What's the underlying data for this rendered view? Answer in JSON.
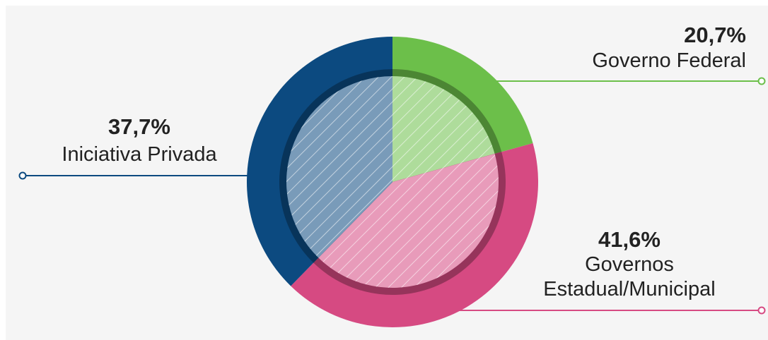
{
  "chart_data": {
    "type": "pie",
    "categories": [
      "Governo Federal",
      "Governos Estadual/Municipal",
      "Iniciativa Privada"
    ],
    "values": [
      20.7,
      41.6,
      37.7
    ],
    "value_labels": [
      "20,7%",
      "41,6%",
      "37,7%"
    ],
    "colors": [
      "#6cbf4a",
      "#d64a82",
      "#0c4a80"
    ]
  }
}
